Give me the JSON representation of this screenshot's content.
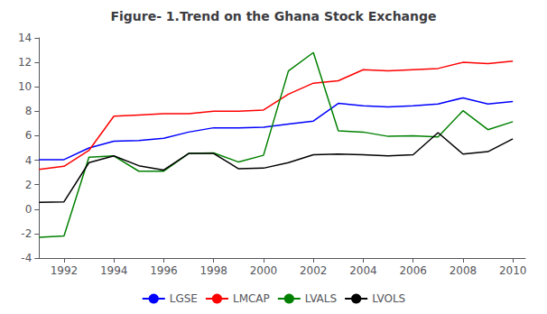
{
  "chart_data": {
    "type": "line",
    "title": "Figure- 1.Trend on the Ghana Stock Exchange",
    "x": [
      1991,
      1992,
      1993,
      1994,
      1995,
      1996,
      1997,
      1998,
      1999,
      2000,
      2001,
      2002,
      2003,
      2004,
      2005,
      2006,
      2007,
      2008,
      2009,
      2010
    ],
    "series": [
      {
        "name": "LGSE",
        "color": "#0000FF",
        "values": [
          4.05,
          4.05,
          5.0,
          5.55,
          5.6,
          5.8,
          6.3,
          6.65,
          6.65,
          6.7,
          6.95,
          7.2,
          8.65,
          8.45,
          8.35,
          8.45,
          8.6,
          9.1,
          8.6,
          8.8
        ]
      },
      {
        "name": "LMCAP",
        "color": "#FF0000",
        "values": [
          3.25,
          3.5,
          4.8,
          7.6,
          7.7,
          7.8,
          7.8,
          8.0,
          8.0,
          8.1,
          9.4,
          10.3,
          10.5,
          11.4,
          11.3,
          11.4,
          11.5,
          12.0,
          11.9,
          12.1
        ]
      },
      {
        "name": "LVALS",
        "color": "#008000",
        "values": [
          -2.3,
          -2.2,
          4.25,
          4.35,
          3.1,
          3.1,
          4.55,
          4.6,
          3.85,
          4.4,
          11.3,
          12.8,
          6.4,
          6.3,
          5.95,
          6.0,
          5.9,
          8.05,
          6.5,
          7.15
        ]
      },
      {
        "name": "LVOLS",
        "color": "#000000",
        "values": [
          0.55,
          0.6,
          3.8,
          4.35,
          3.55,
          3.2,
          4.55,
          4.55,
          3.3,
          3.35,
          3.8,
          4.45,
          4.5,
          4.45,
          4.35,
          4.45,
          6.25,
          4.5,
          4.7,
          5.75
        ]
      }
    ],
    "xlim": [
      1991,
      2010.5
    ],
    "xticks": [
      1992,
      1994,
      1996,
      1998,
      2000,
      2002,
      2004,
      2006,
      2008,
      2010
    ],
    "ylim": [
      -4,
      14
    ],
    "yticks": [
      -4,
      -2,
      0,
      2,
      4,
      6,
      8,
      10,
      12,
      14
    ],
    "grid": false,
    "legend": "bottom"
  }
}
